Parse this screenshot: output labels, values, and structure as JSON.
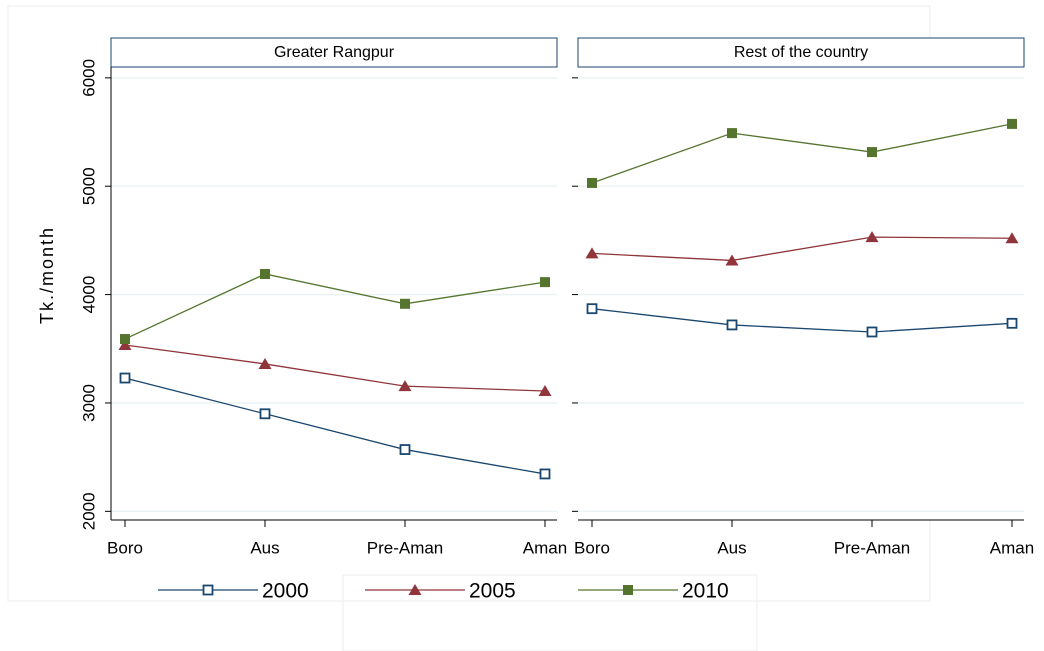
{
  "chart_data": [
    {
      "type": "line",
      "title": "Greater Rangpur",
      "y_label": "Tk./month",
      "categories": [
        "Boro",
        "Aus",
        "Pre-Aman",
        "Aman"
      ],
      "ylim": [
        1920,
        6100
      ],
      "yticks": [
        2000,
        3000,
        4000,
        5000,
        6000
      ],
      "grid": true,
      "series": [
        {
          "name": "2000",
          "color": "#1a476f",
          "marker": "hollow-square",
          "values": [
            3230,
            2900,
            2570,
            2345
          ]
        },
        {
          "name": "2005",
          "color": "#90353b",
          "marker": "triangle",
          "values": [
            3535,
            3360,
            3155,
            3110
          ]
        },
        {
          "name": "2010",
          "color": "#55752f",
          "marker": "square",
          "values": [
            3590,
            4190,
            3915,
            4115
          ]
        }
      ]
    },
    {
      "type": "line",
      "title": "Rest of the country",
      "categories": [
        "Boro",
        "Aus",
        "Pre-Aman",
        "Aman"
      ],
      "ylim": [
        1920,
        6100
      ],
      "yticks": [
        2000,
        3000,
        4000,
        5000,
        6000
      ],
      "grid": true,
      "series": [
        {
          "color": "#1a476f",
          "marker": "hollow-square",
          "values": [
            3870,
            3720,
            3655,
            3735
          ]
        },
        {
          "color": "#90353b",
          "marker": "triangle",
          "values": [
            4380,
            4315,
            4530,
            4520
          ]
        },
        {
          "color": "#55752f",
          "marker": "square",
          "values": [
            5030,
            5490,
            5315,
            5575
          ]
        }
      ]
    }
  ]
}
